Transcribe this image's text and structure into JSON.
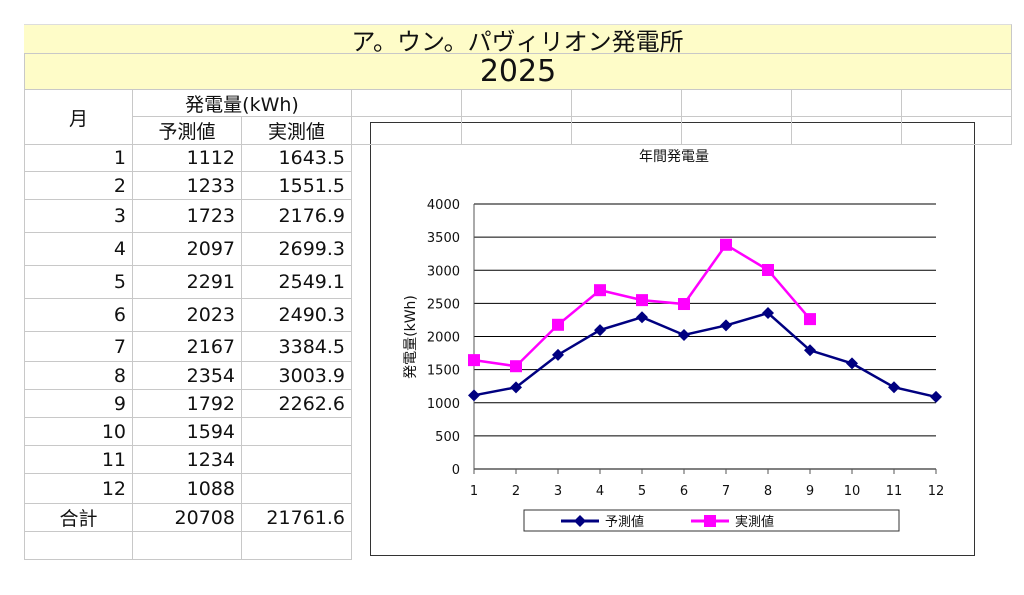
{
  "title": "ア。ウン。パヴィリオン発電所",
  "year": "2025",
  "table": {
    "month_header": "月",
    "group_header": "発電量(kWh)",
    "col_forecast": "予測値",
    "col_actual": "実測値",
    "rows": [
      {
        "month": "1",
        "forecast": "1112",
        "actual": "1643.5"
      },
      {
        "month": "2",
        "forecast": "1233",
        "actual": "1551.5"
      },
      {
        "month": "3",
        "forecast": "1723",
        "actual": "2176.9"
      },
      {
        "month": "4",
        "forecast": "2097",
        "actual": "2699.3"
      },
      {
        "month": "5",
        "forecast": "2291",
        "actual": "2549.1"
      },
      {
        "month": "6",
        "forecast": "2023",
        "actual": "2490.3"
      },
      {
        "month": "7",
        "forecast": "2167",
        "actual": "3384.5"
      },
      {
        "month": "8",
        "forecast": "2354",
        "actual": "3003.9"
      },
      {
        "month": "9",
        "forecast": "1792",
        "actual": "2262.6"
      },
      {
        "month": "10",
        "forecast": "1594",
        "actual": ""
      },
      {
        "month": "11",
        "forecast": "1234",
        "actual": ""
      },
      {
        "month": "12",
        "forecast": "1088",
        "actual": ""
      }
    ],
    "total_label": "合計",
    "total_forecast": "20708",
    "total_actual": "21761.6"
  },
  "chart_data": {
    "type": "line",
    "title": "年間発電量",
    "xlabel": "",
    "ylabel": "発電量(kWh)",
    "categories": [
      "1",
      "2",
      "3",
      "4",
      "5",
      "6",
      "7",
      "8",
      "9",
      "10",
      "11",
      "12"
    ],
    "ylim": [
      0,
      4000
    ],
    "yticks": [
      "0",
      "500",
      "1000",
      "1500",
      "2000",
      "2500",
      "3000",
      "3500",
      "4000"
    ],
    "grid": true,
    "legend_position": "bottom",
    "series": [
      {
        "name": "予測値",
        "color": "#000080",
        "marker": "diamond",
        "values": [
          1112,
          1233,
          1723,
          2097,
          2291,
          2023,
          2167,
          2354,
          1792,
          1594,
          1234,
          1088
        ]
      },
      {
        "name": "実測値",
        "color": "#ff00ff",
        "marker": "square",
        "values": [
          1643.5,
          1551.5,
          2176.9,
          2699.3,
          2549.1,
          2490.3,
          3384.5,
          3003.9,
          2262.6,
          null,
          null,
          null
        ]
      }
    ]
  }
}
